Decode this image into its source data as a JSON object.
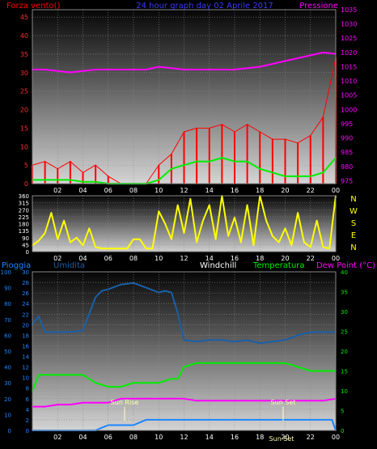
{
  "chart_data": [
    {
      "type": "line",
      "title": "24 hour graph day  02 Aprile 2017",
      "left_axis_label": "Forza vento()",
      "right_axis_label": "Pressione",
      "x_ticks": [
        "02",
        "04",
        "06",
        "08",
        "10",
        "12",
        "14",
        "16",
        "18",
        "20",
        "22",
        "00"
      ],
      "y_left_ticks": [
        "0",
        "5",
        "10",
        "15",
        "20",
        "25",
        "30",
        "35",
        "40",
        "45"
      ],
      "y_left_range": [
        0,
        47
      ],
      "y_right_ticks": [
        "975",
        "980",
        "985",
        "990",
        "995",
        "1000",
        "1005",
        "1010",
        "1015",
        "1020",
        "1025",
        "1030",
        "1035"
      ],
      "y_right_range": [
        974,
        1035
      ],
      "series": [
        {
          "key": "wind_gust",
          "color": "#ff0000",
          "x": [
            0,
            1,
            2,
            3,
            4,
            5,
            6,
            7,
            8,
            9,
            10,
            11,
            12,
            13,
            14,
            15,
            16,
            17,
            18,
            19,
            20,
            21,
            22,
            23,
            24
          ],
          "y": [
            5,
            6,
            4,
            6,
            3,
            5,
            2,
            0,
            0,
            0,
            5,
            8,
            14,
            15,
            15,
            16,
            14,
            16,
            14,
            12,
            12,
            11,
            13,
            18,
            34
          ]
        },
        {
          "key": "wind_avg",
          "color": "#00ee00",
          "x": [
            0,
            1,
            2,
            3,
            4,
            5,
            6,
            7,
            8,
            9,
            10,
            11,
            12,
            13,
            14,
            15,
            16,
            17,
            18,
            19,
            20,
            21,
            22,
            23,
            24
          ],
          "y": [
            1,
            1,
            1,
            1,
            0.5,
            0.5,
            0,
            0,
            0,
            0,
            1,
            4,
            5,
            6,
            6,
            7,
            6,
            6,
            4,
            3,
            2,
            2,
            2,
            3,
            7
          ]
        },
        {
          "key": "pressure",
          "color": "#ff00ff",
          "x": [
            0,
            1,
            2,
            3,
            4,
            5,
            6,
            7,
            8,
            9,
            10,
            11,
            12,
            13,
            14,
            15,
            16,
            17,
            18,
            19,
            20,
            21,
            22,
            23,
            24
          ],
          "y": [
            1014,
            1014,
            1013.5,
            1013,
            1013.5,
            1014,
            1014,
            1014,
            1014,
            1014,
            1015,
            1014.5,
            1014,
            1014,
            1014,
            1014,
            1014,
            1014.5,
            1015,
            1016,
            1017,
            1018,
            1019,
            1020,
            1019.5
          ]
        }
      ]
    },
    {
      "type": "line",
      "y_ticks": [
        "0",
        "45",
        "90",
        "135",
        "180",
        "225",
        "270",
        "315",
        "360"
      ],
      "y_range": [
        0,
        360
      ],
      "right_labels": [
        "N",
        "W",
        "S",
        "E",
        "N"
      ],
      "x_ticks": [
        "02",
        "04",
        "06",
        "08",
        "10",
        "12",
        "14",
        "16",
        "18",
        "20",
        "22",
        "00"
      ],
      "series": [
        {
          "key": "wind_direction",
          "color": "#ffff00",
          "x": [
            0,
            0.5,
            1,
            1.5,
            2,
            2.5,
            3,
            3.5,
            4,
            4.5,
            5,
            5.5,
            6,
            6.5,
            7,
            7.5,
            8,
            8.5,
            9,
            9.5,
            10,
            10.5,
            11,
            11.5,
            12,
            12.5,
            13,
            13.5,
            14,
            14.5,
            15,
            15.5,
            16,
            16.5,
            17,
            17.5,
            18,
            18.5,
            19,
            19.5,
            20,
            20.5,
            21,
            21.5,
            22,
            22.5,
            23,
            23.5,
            24
          ],
          "y": [
            40,
            70,
            120,
            250,
            80,
            200,
            60,
            90,
            40,
            150,
            30,
            20,
            20,
            20,
            20,
            20,
            80,
            80,
            20,
            20,
            260,
            180,
            80,
            300,
            120,
            340,
            60,
            200,
            300,
            80,
            360,
            100,
            220,
            60,
            300,
            40,
            360,
            200,
            100,
            60,
            150,
            40,
            250,
            60,
            30,
            200,
            30,
            20,
            360
          ]
        }
      ]
    },
    {
      "type": "line",
      "labels": {
        "rain": "Pioggia",
        "humidity": "Umidita",
        "windchill": "Windchill",
        "temperature": "Temperatura",
        "dewpoint": "Dew Point (°C)"
      },
      "y_far_left_ticks": [
        "0",
        "10",
        "20",
        "30",
        "40",
        "50",
        "60",
        "70",
        "80",
        "90",
        "100"
      ],
      "y_left_ticks": [
        "0",
        "2",
        "4",
        "6",
        "8",
        "10",
        "12",
        "14",
        "16",
        "18",
        "20",
        "22",
        "24",
        "26",
        "28",
        "30"
      ],
      "y_left_range": [
        0,
        30
      ],
      "y_right_ticks": [
        "0",
        "5",
        "10",
        "15",
        "20",
        "25",
        "30",
        "35",
        "40"
      ],
      "y_right_range": [
        0,
        40
      ],
      "x_ticks": [
        "02",
        "04",
        "06",
        "08",
        "10",
        "12",
        "14",
        "16",
        "18",
        "20",
        "22",
        "00"
      ],
      "annotations": [
        "Sun Rise",
        "Sun Set"
      ],
      "bottom_label": "Sun Set",
      "series": [
        {
          "key": "humidity",
          "color": "#1a5fa8",
          "axis": "far_left",
          "x": [
            0,
            0.5,
            1,
            2,
            3,
            4,
            5,
            5.5,
            6,
            7,
            8,
            9,
            10,
            10.5,
            11,
            11.5,
            12,
            13,
            14,
            15,
            16,
            17,
            18,
            19,
            20,
            21,
            22,
            23,
            24
          ],
          "y": [
            67,
            72,
            62,
            62,
            62,
            63,
            84,
            88,
            89,
            92,
            93,
            90,
            87,
            88,
            87,
            74,
            57,
            56,
            57,
            57,
            56,
            57,
            55,
            56,
            57,
            60,
            62,
            62,
            62
          ]
        },
        {
          "key": "temperature",
          "color": "#00ee00",
          "axis": "right",
          "x": [
            0,
            0.5,
            1,
            2,
            3,
            4,
            5,
            6,
            7,
            8,
            9,
            10,
            11,
            11.5,
            12,
            13,
            14,
            15,
            16,
            17,
            18,
            19,
            20,
            21,
            22,
            23,
            24
          ],
          "y": [
            10,
            14,
            14,
            14,
            14,
            14,
            12,
            11,
            11,
            12,
            12,
            12,
            13,
            13,
            16,
            17,
            17,
            17,
            17,
            17,
            17,
            17,
            17,
            16,
            15,
            15,
            15
          ]
        },
        {
          "key": "dewpoint",
          "color": "#ff00ff",
          "axis": "right",
          "x": [
            0,
            1,
            2,
            3,
            4,
            5,
            6,
            7,
            8,
            9,
            10,
            11,
            12,
            13,
            14,
            15,
            16,
            17,
            18,
            19,
            20,
            21,
            22,
            23,
            24
          ],
          "y": [
            6,
            6,
            6.5,
            6.5,
            7,
            7,
            7,
            8,
            8,
            8,
            8,
            8,
            8,
            7.5,
            7.5,
            7.5,
            7.5,
            7.5,
            7.5,
            7.5,
            7.5,
            7.5,
            7.5,
            7.5,
            8
          ]
        },
        {
          "key": "rain",
          "color": "#1c86ff",
          "axis": "left",
          "x": [
            0,
            1,
            2,
            3,
            4,
            5,
            5.5,
            6,
            7,
            8,
            8.5,
            9,
            10,
            11,
            12,
            13,
            14,
            15,
            16,
            17,
            18,
            19,
            20,
            21,
            22,
            23,
            23.7,
            24
          ],
          "y": [
            0,
            0,
            0,
            0,
            0,
            0,
            0.5,
            1,
            1,
            1,
            1.5,
            2,
            2,
            2,
            2,
            2,
            2,
            2,
            2,
            2,
            2,
            2,
            2,
            2,
            2,
            2,
            2,
            0
          ]
        }
      ]
    }
  ]
}
